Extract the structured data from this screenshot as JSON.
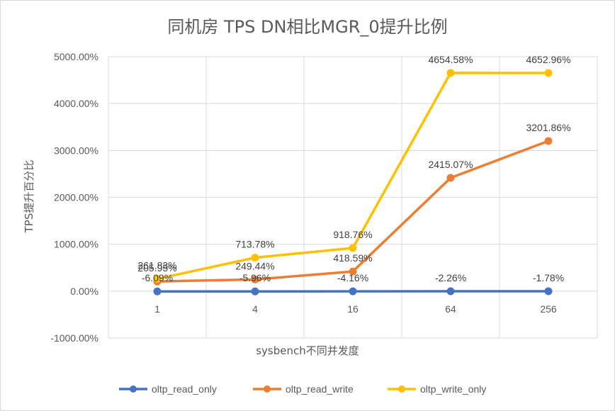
{
  "chart_data": {
    "type": "line",
    "title": "同机房 TPS DN相比MGR_0提升比例",
    "xlabel": "sysbench不同并发度",
    "ylabel": "TPS提升百分比",
    "categories": [
      "1",
      "4",
      "16",
      "64",
      "256"
    ],
    "ylim": [
      -1000,
      5000
    ],
    "yticks": [
      "-1000.00%",
      "0.00%",
      "1000.00%",
      "2000.00%",
      "3000.00%",
      "4000.00%",
      "5000.00%"
    ],
    "ytick_values": [
      -1000,
      0,
      1000,
      2000,
      3000,
      4000,
      5000
    ],
    "grid": true,
    "legend_position": "bottom",
    "series": [
      {
        "name": "oltp_read_only",
        "color": "#4472C4",
        "values": [
          -6.09,
          -5.96,
          -4.16,
          -2.26,
          -1.78
        ],
        "labels": [
          "-6.09%",
          "-5.96%",
          "-4.16%",
          "-2.26%",
          "-1.78%"
        ]
      },
      {
        "name": "oltp_read_write",
        "color": "#ED7D31",
        "values": [
          205.95,
          249.44,
          418.59,
          2415.07,
          3201.86
        ],
        "labels": [
          "205.95%",
          "249.44%",
          "418.59%",
          "2415.07%",
          "3201.86%"
        ]
      },
      {
        "name": "oltp_write_only",
        "color": "#FFC000",
        "values": [
          261.83,
          713.78,
          918.76,
          4654.58,
          4652.96
        ],
        "labels": [
          "261.83%",
          "713.78%",
          "918.76%",
          "4654.58%",
          "4652.96%"
        ]
      }
    ]
  }
}
